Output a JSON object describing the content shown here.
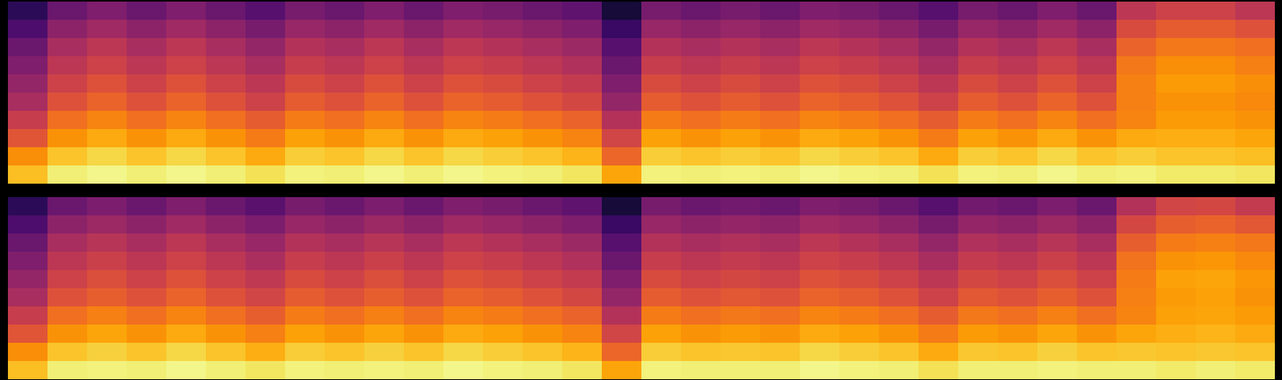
{
  "chart_data": [
    {
      "type": "heatmap",
      "tick_labels": false,
      "color": "inferno",
      "zlim": [
        0,
        100
      ],
      "cells": [
        [
          15,
          30,
          35,
          30,
          35,
          30,
          25,
          33,
          30,
          35,
          30,
          35,
          33,
          30,
          27,
          10,
          33,
          30,
          33,
          30,
          35,
          33,
          30,
          25,
          33,
          30,
          35,
          30,
          50,
          55,
          55,
          50
        ],
        [
          23,
          38,
          43,
          38,
          43,
          38,
          33,
          41,
          38,
          43,
          38,
          43,
          41,
          38,
          35,
          18,
          41,
          38,
          41,
          38,
          43,
          41,
          38,
          33,
          41,
          38,
          43,
          38,
          58,
          63,
          63,
          60
        ],
        [
          30,
          45,
          50,
          45,
          50,
          45,
          40,
          48,
          45,
          50,
          45,
          50,
          48,
          45,
          42,
          25,
          48,
          45,
          48,
          45,
          50,
          48,
          45,
          40,
          48,
          45,
          50,
          45,
          65,
          70,
          70,
          68
        ],
        [
          35,
          50,
          55,
          50,
          55,
          50,
          45,
          53,
          50,
          55,
          50,
          55,
          53,
          50,
          47,
          30,
          53,
          50,
          53,
          50,
          55,
          53,
          50,
          45,
          53,
          50,
          55,
          50,
          70,
          75,
          75,
          72
        ],
        [
          40,
          55,
          60,
          55,
          60,
          55,
          50,
          58,
          55,
          60,
          55,
          60,
          58,
          55,
          52,
          35,
          58,
          55,
          58,
          55,
          60,
          58,
          55,
          50,
          58,
          55,
          60,
          55,
          72,
          78,
          78,
          75
        ],
        [
          45,
          60,
          65,
          60,
          65,
          60,
          55,
          63,
          60,
          65,
          60,
          65,
          63,
          60,
          57,
          40,
          63,
          60,
          63,
          60,
          65,
          63,
          60,
          55,
          63,
          60,
          65,
          60,
          72,
          76,
          76,
          74
        ],
        [
          53,
          68,
          73,
          68,
          73,
          68,
          63,
          71,
          68,
          73,
          68,
          73,
          71,
          68,
          65,
          48,
          71,
          68,
          71,
          68,
          73,
          71,
          68,
          63,
          71,
          68,
          73,
          68,
          73,
          78,
          78,
          76
        ],
        [
          61,
          76,
          81,
          76,
          81,
          76,
          71,
          79,
          76,
          81,
          76,
          81,
          79,
          76,
          73,
          56,
          79,
          76,
          79,
          76,
          81,
          79,
          76,
          71,
          79,
          76,
          81,
          76,
          81,
          82,
          82,
          80
        ],
        [
          75,
          86,
          90,
          86,
          90,
          86,
          81,
          88,
          86,
          90,
          86,
          90,
          88,
          86,
          83,
          66,
          88,
          86,
          88,
          86,
          90,
          88,
          86,
          81,
          88,
          86,
          90,
          86,
          88,
          86,
          86,
          85
        ],
        [
          85,
          95,
          97,
          95,
          97,
          95,
          92,
          96,
          95,
          97,
          95,
          97,
          96,
          95,
          93,
          80,
          96,
          95,
          96,
          95,
          97,
          96,
          95,
          92,
          96,
          95,
          97,
          95,
          96,
          94,
          94,
          93
        ]
      ]
    },
    {
      "type": "heatmap",
      "tick_labels": false,
      "color": "inferno",
      "zlim": [
        0,
        100
      ],
      "cells": [
        [
          15,
          30,
          34,
          30,
          35,
          30,
          26,
          33,
          30,
          34,
          30,
          35,
          33,
          30,
          27,
          10,
          33,
          30,
          32,
          30,
          35,
          33,
          30,
          25,
          32,
          30,
          34,
          30,
          48,
          56,
          57,
          52
        ],
        [
          23,
          38,
          42,
          38,
          43,
          38,
          34,
          41,
          38,
          42,
          38,
          43,
          41,
          38,
          35,
          18,
          41,
          38,
          40,
          38,
          43,
          41,
          38,
          33,
          40,
          38,
          42,
          38,
          57,
          64,
          65,
          62
        ],
        [
          30,
          45,
          49,
          45,
          50,
          45,
          41,
          48,
          45,
          49,
          45,
          50,
          48,
          45,
          42,
          25,
          48,
          45,
          47,
          45,
          50,
          48,
          45,
          40,
          47,
          45,
          49,
          45,
          64,
          71,
          72,
          70
        ],
        [
          35,
          50,
          54,
          50,
          55,
          50,
          46,
          53,
          50,
          54,
          50,
          55,
          53,
          50,
          47,
          30,
          53,
          50,
          52,
          50,
          55,
          53,
          50,
          45,
          52,
          50,
          54,
          50,
          69,
          76,
          77,
          74
        ],
        [
          40,
          55,
          59,
          55,
          60,
          55,
          51,
          58,
          55,
          59,
          55,
          60,
          58,
          55,
          52,
          35,
          58,
          55,
          57,
          55,
          60,
          58,
          55,
          50,
          57,
          55,
          59,
          55,
          71,
          79,
          80,
          77
        ],
        [
          45,
          60,
          64,
          60,
          65,
          60,
          56,
          63,
          60,
          64,
          60,
          65,
          63,
          60,
          57,
          40,
          63,
          60,
          62,
          60,
          65,
          63,
          60,
          55,
          62,
          60,
          64,
          60,
          72,
          78,
          79,
          76
        ],
        [
          53,
          68,
          72,
          68,
          73,
          68,
          64,
          71,
          68,
          72,
          68,
          73,
          71,
          68,
          65,
          48,
          71,
          68,
          70,
          68,
          73,
          71,
          68,
          63,
          70,
          68,
          72,
          68,
          73,
          79,
          80,
          78
        ],
        [
          61,
          76,
          80,
          76,
          81,
          76,
          72,
          79,
          76,
          80,
          76,
          81,
          79,
          76,
          73,
          56,
          79,
          76,
          78,
          76,
          81,
          79,
          76,
          71,
          78,
          76,
          80,
          76,
          80,
          82,
          83,
          81
        ],
        [
          75,
          86,
          89,
          86,
          90,
          86,
          82,
          88,
          86,
          89,
          86,
          90,
          88,
          86,
          83,
          66,
          88,
          86,
          87,
          86,
          90,
          88,
          86,
          81,
          87,
          86,
          89,
          86,
          87,
          86,
          87,
          86
        ],
        [
          85,
          95,
          96,
          95,
          97,
          95,
          93,
          96,
          95,
          96,
          95,
          97,
          96,
          95,
          93,
          80,
          96,
          95,
          95,
          95,
          97,
          96,
          95,
          92,
          95,
          95,
          96,
          95,
          95,
          94,
          95,
          94
        ]
      ]
    }
  ]
}
